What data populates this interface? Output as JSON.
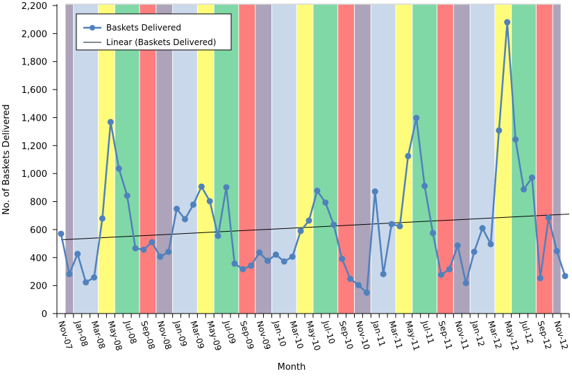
{
  "chart_data": {
    "type": "line",
    "title": "",
    "xlabel": "Month",
    "ylabel": "No. of Baskets Delivered",
    "ylim": [
      0,
      2200
    ],
    "yticks": [
      "0",
      "200",
      "400",
      "600",
      "800",
      "1,000",
      "1,200",
      "1,400",
      "1,600",
      "1,800",
      "2,000",
      "2,200"
    ],
    "grid": false,
    "legend_position": "top-left",
    "categories": [
      "Nov-07",
      "Dec-07",
      "Jan-08",
      "Feb-08",
      "Mar-08",
      "Apr-08",
      "May-08",
      "Jun-08",
      "Jul-08",
      "Aug-08",
      "Sep-08",
      "Oct-08",
      "Nov-08",
      "Dec-08",
      "Jan-09",
      "Feb-09",
      "Mar-09",
      "Apr-09",
      "May-09",
      "Jun-09",
      "Jul-09",
      "Aug-09",
      "Sep-09",
      "Oct-09",
      "Nov-09",
      "Dec-09",
      "Jan-10",
      "Feb-10",
      "Mar-10",
      "Apr-10",
      "May-10",
      "Jun-10",
      "Jul-10",
      "Aug-10",
      "Sep-10",
      "Oct-10",
      "Nov-10",
      "Dec-10",
      "Jan-11",
      "Feb-11",
      "Mar-11",
      "Apr-11",
      "May-11",
      "Jun-11",
      "Jul-11",
      "Aug-11",
      "Sep-11",
      "Oct-11",
      "Nov-11",
      "Dec-11",
      "Jan-12",
      "Feb-12",
      "Mar-12",
      "Apr-12",
      "May-12",
      "Jun-12",
      "Jul-12",
      "Aug-12",
      "Sep-12",
      "Oct-12",
      "Nov-12",
      "Dec-12"
    ],
    "series": [
      {
        "name": "Baskets Delivered",
        "color": "#4f81bd",
        "values": [
          570,
          282,
          426,
          223,
          258,
          679,
          1368,
          1036,
          842,
          466,
          456,
          510,
          406,
          441,
          748,
          674,
          778,
          907,
          803,
          555,
          902,
          357,
          317,
          342,
          436,
          377,
          421,
          372,
          406,
          590,
          664,
          877,
          793,
          634,
          391,
          248,
          203,
          149,
          872,
          282,
          639,
          624,
          1125,
          1397,
          912,
          575,
          277,
          317,
          486,
          218,
          441,
          610,
          496,
          1308,
          2081,
          1244,
          887,
          971,
          253,
          684,
          446,
          268
        ]
      },
      {
        "name": "Linear (Baskets Delivered)",
        "color": "#000000",
        "type": "linear-trend",
        "start": 527,
        "end": 709
      }
    ],
    "season_bands": {
      "winter": {
        "months": [
          "Jan",
          "Feb",
          "Mar"
        ],
        "color": "#c9d8ea"
      },
      "spring": {
        "months": [
          "Apr",
          "May"
        ],
        "color": "#fefc7a"
      },
      "summer": {
        "months": [
          "Jun",
          "Jul",
          "Aug"
        ],
        "color": "#80d8a6"
      },
      "autumn": {
        "months": [
          "Sep",
          "Oct"
        ],
        "color": "#fe7e7e"
      },
      "holiday": {
        "months": [
          "Nov",
          "Dec"
        ],
        "color": "#ada3bb"
      }
    }
  }
}
